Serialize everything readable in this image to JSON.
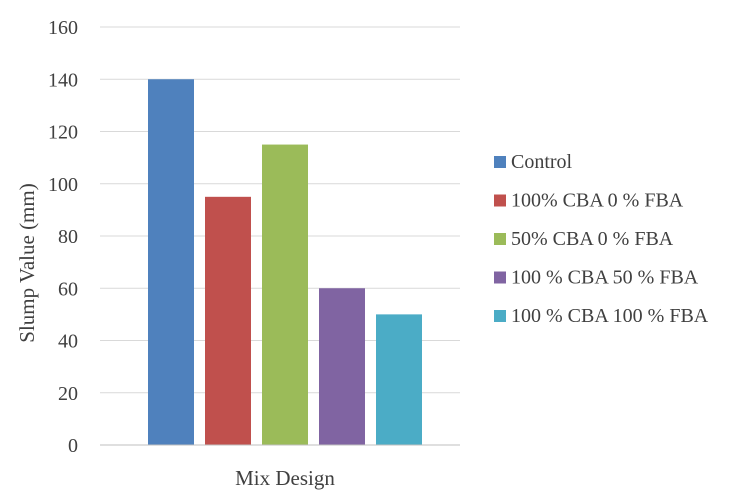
{
  "chart_data": {
    "type": "bar",
    "title": "",
    "xlabel": "Mix Design",
    "ylabel": "Slump Value (mm)",
    "ylim": [
      0,
      160
    ],
    "yticks": [
      0,
      20,
      40,
      60,
      80,
      100,
      120,
      140,
      160
    ],
    "grid": true,
    "legend_position": "right",
    "categories": [
      "Mix Design"
    ],
    "series": [
      {
        "name": "Control",
        "values": [
          140
        ],
        "color": "#4F81BD"
      },
      {
        "name": "100% CBA 0 % FBA",
        "values": [
          95
        ],
        "color": "#C0504D"
      },
      {
        "name": "50% CBA 0 % FBA",
        "values": [
          115
        ],
        "color": "#9BBB59"
      },
      {
        "name": "100 % CBA 50 % FBA",
        "values": [
          60
        ],
        "color": "#8064A2"
      },
      {
        "name": "100 % CBA 100 % FBA",
        "values": [
          50
        ],
        "color": "#4BACC6"
      }
    ]
  }
}
